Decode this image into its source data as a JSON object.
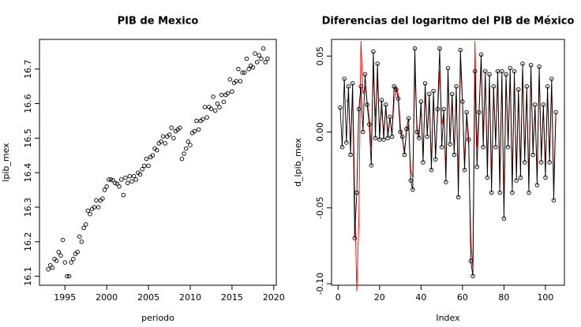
{
  "chart_data": [
    {
      "type": "scatter",
      "title": "PIB de Mexico",
      "xlabel": "periodo",
      "ylabel": "lpib_mex",
      "x": [
        1993,
        1993.25,
        1993.5,
        1993.75,
        1994,
        1994.25,
        1994.5,
        1994.75,
        1995,
        1995.25,
        1995.5,
        1995.75,
        1996,
        1996.25,
        1996.5,
        1996.75,
        1997,
        1997.25,
        1997.5,
        1997.75,
        1998,
        1998.25,
        1998.5,
        1998.75,
        1999,
        1999.25,
        1999.5,
        1999.75,
        2000,
        2000.25,
        2000.5,
        2000.75,
        2001,
        2001.25,
        2001.5,
        2001.75,
        2002,
        2002.25,
        2002.5,
        2002.75,
        2003,
        2003.25,
        2003.5,
        2003.75,
        2004,
        2004.25,
        2004.5,
        2004.75,
        2005,
        2005.25,
        2005.5,
        2005.75,
        2006,
        2006.25,
        2006.5,
        2006.75,
        2007,
        2007.25,
        2007.5,
        2007.75,
        2008,
        2008.25,
        2008.5,
        2008.75,
        2009,
        2009.25,
        2009.5,
        2009.75,
        2010,
        2010.25,
        2010.5,
        2010.75,
        2011,
        2011.25,
        2011.5,
        2011.75,
        2012,
        2012.25,
        2012.5,
        2012.75,
        2013,
        2013.25,
        2013.5,
        2013.75,
        2014,
        2014.25,
        2014.5,
        2014.75,
        2015,
        2015.25,
        2015.5,
        2015.75,
        2016,
        2016.25,
        2016.5,
        2016.75,
        2017,
        2017.25,
        2017.5,
        2017.75,
        2018,
        2018.25,
        2018.5,
        2018.75,
        2019,
        2019.25
      ],
      "values": [
        16.12,
        16.132,
        16.125,
        16.15,
        16.145,
        16.17,
        16.16,
        16.205,
        16.14,
        16.1,
        16.1,
        16.14,
        16.15,
        16.165,
        16.17,
        16.215,
        16.2,
        16.24,
        16.25,
        16.29,
        16.28,
        16.295,
        16.3,
        16.32,
        16.3,
        16.32,
        16.325,
        16.35,
        16.36,
        16.38,
        16.38,
        16.378,
        16.37,
        16.368,
        16.36,
        16.38,
        16.335,
        16.385,
        16.37,
        16.39,
        16.375,
        16.39,
        16.38,
        16.4,
        16.395,
        16.41,
        16.42,
        16.44,
        16.42,
        16.445,
        16.45,
        16.47,
        16.465,
        16.485,
        16.49,
        16.505,
        16.485,
        16.505,
        16.51,
        16.53,
        16.5,
        16.52,
        16.525,
        16.53,
        16.44,
        16.455,
        16.47,
        16.49,
        16.48,
        16.515,
        16.52,
        16.55,
        16.525,
        16.55,
        16.555,
        16.59,
        16.56,
        16.59,
        16.585,
        16.62,
        16.58,
        16.6,
        16.59,
        16.625,
        16.605,
        16.625,
        16.63,
        16.67,
        16.635,
        16.66,
        16.665,
        16.7,
        16.665,
        16.69,
        16.69,
        16.73,
        16.7,
        16.71,
        16.705,
        16.745,
        16.72,
        16.74,
        16.73,
        16.76,
        16.72,
        16.73
      ],
      "color": "#000000",
      "xlim": [
        1991.95,
        2020.3
      ],
      "xticks": [
        1995,
        2000,
        2005,
        2010,
        2015,
        2020
      ],
      "ylim": [
        16.074,
        16.786
      ],
      "yticks": [
        16.1,
        16.2,
        16.3,
        16.4,
        16.5,
        16.6,
        16.7
      ]
    },
    {
      "type": "line",
      "title": "Diferencias del logaritmo del PIB de México",
      "xlabel": "Index",
      "ylabel": "d_lpib_mex",
      "x": [
        1,
        2,
        3,
        4,
        5,
        6,
        7,
        8,
        9,
        10,
        11,
        12,
        13,
        14,
        15,
        16,
        17,
        18,
        19,
        20,
        21,
        22,
        23,
        24,
        25,
        26,
        27,
        28,
        29,
        30,
        31,
        32,
        33,
        34,
        35,
        36,
        37,
        38,
        39,
        40,
        41,
        42,
        43,
        44,
        45,
        46,
        47,
        48,
        49,
        50,
        51,
        52,
        53,
        54,
        55,
        56,
        57,
        58,
        59,
        60,
        61,
        62,
        63,
        64,
        65,
        66,
        67,
        68,
        69,
        70,
        71,
        72,
        73,
        74,
        75,
        76,
        77,
        78,
        79,
        80,
        81,
        82,
        83,
        84,
        85,
        86,
        87,
        88,
        89,
        90,
        91,
        92,
        93,
        94,
        95,
        96,
        97,
        98,
        99,
        100,
        101,
        102,
        103,
        104,
        105
      ],
      "series": [
        {
          "color": "#000000",
          "markers": true,
          "values": [
            0.016,
            -0.01,
            0.035,
            -0.007,
            0.03,
            -0.015,
            0.032,
            -0.07,
            -0.04,
            0.015,
            0.03,
            0.0,
            0.038,
            0.018,
            0.005,
            -0.022,
            0.053,
            -0.004,
            0.045,
            -0.005,
            0.021,
            -0.005,
            0.018,
            -0.004,
            0.01,
            -0.003,
            0.03,
            0.028,
            0.022,
            0.0,
            -0.003,
            -0.015,
            0.002,
            0.009,
            -0.032,
            -0.038,
            0.055,
            0.0,
            -0.004,
            0.02,
            -0.02,
            0.032,
            -0.003,
            0.025,
            -0.025,
            0.027,
            -0.018,
            0.015,
            0.055,
            -0.01,
            0.015,
            -0.033,
            0.042,
            -0.008,
            0.025,
            -0.015,
            0.03,
            -0.043,
            0.054,
            0.02,
            -0.025,
            0.013,
            -0.005,
            -0.085,
            -0.095,
            0.04,
            -0.023,
            0.013,
            0.051,
            -0.01,
            0.04,
            -0.03,
            0.038,
            -0.04,
            0.03,
            -0.01,
            0.04,
            -0.04,
            0.04,
            -0.057,
            0.038,
            -0.01,
            0.042,
            -0.04,
            0.04,
            -0.032,
            0.028,
            -0.03,
            0.045,
            -0.02,
            0.03,
            -0.04,
            0.044,
            -0.015,
            0.018,
            -0.035,
            0.043,
            -0.02,
            0.018,
            -0.03,
            0.03,
            -0.02,
            0.035,
            -0.045,
            0.013
          ]
        },
        {
          "color": "#ff0000",
          "markers": false,
          "values": [
            null,
            null,
            null,
            0.02,
            0.022,
            -0.008,
            0.028,
            -0.04,
            -0.105,
            -0.06,
            0.06,
            0.025,
            0.03,
            0.02,
            0.01,
            -0.01,
            0.04,
            0.01,
            0.035,
            0.0,
            0.015,
            0.0,
            0.015,
            0.0,
            0.008,
            0.0,
            0.02,
            0.03,
            0.025,
            0.005,
            -0.005,
            -0.012,
            0.0,
            0.005,
            -0.025,
            -0.03,
            0.04,
            0.005,
            -0.002,
            0.015,
            -0.015,
            0.025,
            0.0,
            0.02,
            -0.02,
            0.022,
            -0.015,
            0.012,
            0.04,
            0.005,
            0.012,
            -0.025,
            0.035,
            -0.005,
            0.02,
            -0.012,
            0.025,
            -0.035,
            0.045,
            0.02,
            -0.02,
            0.01,
            -0.01,
            -0.07,
            -0.09,
            0.06,
            -0.01,
            0.015,
            0.045,
            0.0,
            0.035,
            -0.02,
            0.032,
            -0.03,
            0.028,
            -0.005,
            0.035,
            -0.03,
            0.035,
            -0.045,
            0.035,
            -0.005,
            0.038,
            -0.03,
            0.035,
            -0.025,
            0.025,
            -0.022,
            0.04,
            -0.015,
            0.025,
            -0.03,
            0.038,
            -0.01,
            0.015,
            -0.028,
            0.038,
            -0.015,
            0.015,
            -0.022,
            0.025,
            -0.015,
            0.03,
            -0.035,
            0.01
          ]
        }
      ],
      "xlim": [
        -3.16,
        109.16
      ],
      "xticks": [
        0,
        20,
        40,
        60,
        80,
        100
      ],
      "ylim": [
        -0.101,
        0.061
      ],
      "yticks": [
        {
          "value": -0.1,
          "label": "-0.10"
        },
        {
          "value": -0.05,
          "label": "-0.05"
        },
        {
          "value": 0,
          "label": "0.00"
        },
        {
          "value": 0.05,
          "label": "0.05"
        }
      ]
    }
  ]
}
